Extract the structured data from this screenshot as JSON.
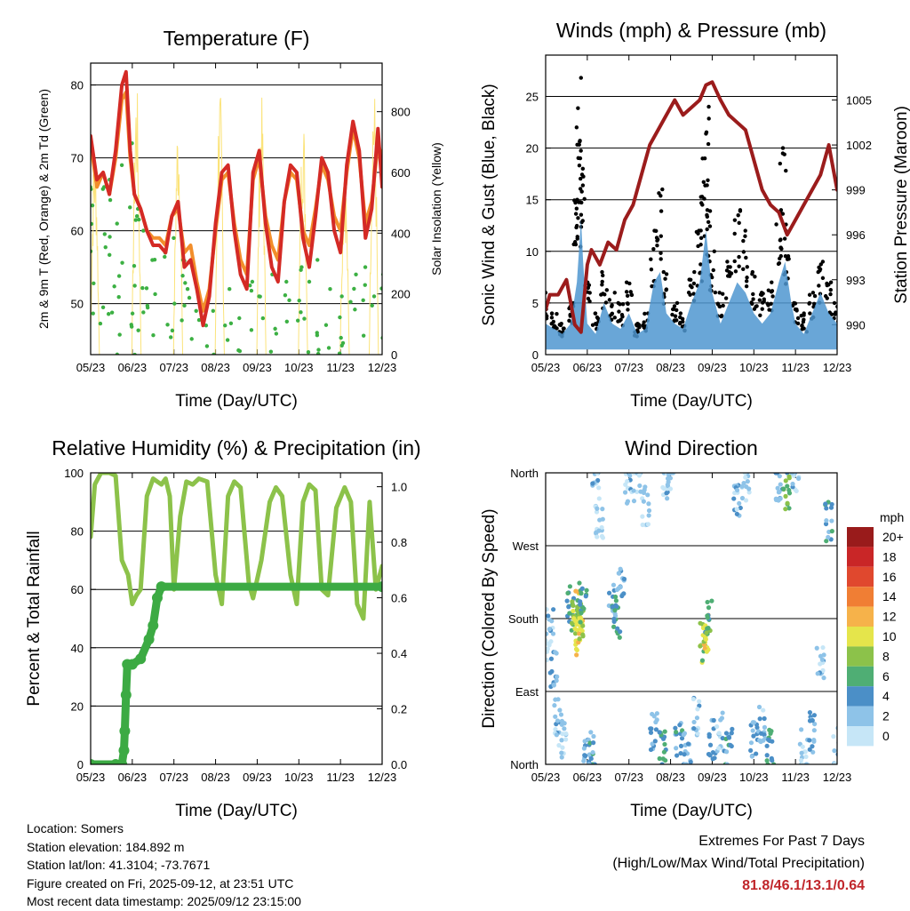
{
  "info": {
    "location": "Location: Somers",
    "elevation": "Station elevation: 184.892 m",
    "latlon": "Station lat/lon: 41.3104; -73.7671",
    "created": "Figure created on Fri, 2025-09-12, at 23:51 UTC",
    "recent": "Most recent data timestamp: 2025/09/12 23:15:00"
  },
  "extremes": {
    "title": "Extremes For Past 7 Days",
    "subtitle": "(High/Low/Max Wind/Total Precipitation)",
    "values": "81.8/46.1/13.1/0.64",
    "value_color": "#c0262b"
  },
  "chart_data": [
    {
      "id": "temperature",
      "type": "line",
      "title": "Temperature (F)",
      "xlabel": "Time (Day/UTC)",
      "ylabel": "2m & 9m T (Red, Orange) & 2m Td (Green)",
      "y2label": "Solar Insolation (Yellow)",
      "xlim": [
        0,
        7
      ],
      "xticks": [
        "05/23",
        "06/23",
        "07/23",
        "08/23",
        "09/23",
        "10/23",
        "11/23",
        "12/23"
      ],
      "ylim": [
        43,
        83
      ],
      "yticks": [
        50,
        60,
        70,
        80
      ],
      "y2lim": [
        0,
        960
      ],
      "y2ticks": [
        0,
        200,
        400,
        600,
        800
      ],
      "grid_y": true,
      "series": [
        {
          "name": "Solar Insolation",
          "axis": "y2",
          "color": "#fbe37a",
          "style": "spikes",
          "days": [
            0.1,
            1.1,
            2.1,
            3.1,
            4.1,
            5.1,
            6.1,
            6.8
          ],
          "peaks": [
            700,
            910,
            800,
            900,
            860,
            820,
            640,
            920
          ]
        },
        {
          "name": "2m Td",
          "axis": "y",
          "color": "#3cb043",
          "style": "points",
          "x": [
            0,
            0.3,
            0.5,
            0.7,
            1.0,
            1.1,
            1.3,
            1.5,
            1.8,
            2.0,
            2.2,
            2.4,
            2.6,
            2.8,
            3.0,
            3.3,
            3.6,
            3.9,
            4.1,
            4.4,
            4.7,
            5.0,
            5.2,
            5.5,
            5.7,
            6.0,
            6.3,
            6.6,
            6.8,
            7.0
          ],
          "values": [
            66,
            66,
            67,
            69,
            72,
            63,
            60,
            58,
            57,
            59,
            56,
            52,
            49,
            47,
            49,
            52,
            48,
            53,
            51,
            54,
            53,
            55,
            53,
            56,
            52,
            51,
            54,
            55,
            51,
            54
          ]
        },
        {
          "name": "9m T",
          "axis": "y",
          "color": "#f28e2b",
          "style": "line",
          "x": [
            0,
            0.15,
            0.3,
            0.45,
            0.6,
            0.75,
            0.85,
            0.95,
            1.05,
            1.2,
            1.35,
            1.5,
            1.65,
            1.8,
            1.95,
            2.1,
            2.25,
            2.4,
            2.55,
            2.7,
            2.85,
            3.0,
            3.15,
            3.3,
            3.45,
            3.6,
            3.75,
            3.9,
            4.05,
            4.2,
            4.35,
            4.5,
            4.65,
            4.8,
            4.95,
            5.1,
            5.25,
            5.4,
            5.55,
            5.7,
            5.85,
            6.0,
            6.15,
            6.3,
            6.45,
            6.6,
            6.75,
            6.9,
            7.0
          ],
          "values": [
            72,
            66,
            68,
            65,
            70,
            78,
            79,
            70,
            65,
            63,
            60,
            59,
            59,
            58,
            62,
            63,
            57,
            58,
            53,
            49,
            52,
            60,
            67,
            68,
            61,
            56,
            54,
            67,
            70,
            62,
            58,
            56,
            64,
            68,
            67,
            60,
            58,
            63,
            69,
            67,
            62,
            60,
            68,
            74,
            70,
            61,
            64,
            72,
            70
          ]
        },
        {
          "name": "2m T",
          "axis": "y",
          "color": "#d42a25",
          "style": "line",
          "x": [
            0,
            0.15,
            0.3,
            0.45,
            0.6,
            0.75,
            0.85,
            0.95,
            1.05,
            1.2,
            1.35,
            1.5,
            1.65,
            1.8,
            1.95,
            2.1,
            2.25,
            2.4,
            2.55,
            2.7,
            2.85,
            3.0,
            3.15,
            3.3,
            3.45,
            3.6,
            3.75,
            3.9,
            4.05,
            4.2,
            4.35,
            4.5,
            4.65,
            4.8,
            4.95,
            5.1,
            5.25,
            5.4,
            5.55,
            5.7,
            5.85,
            6.0,
            6.15,
            6.3,
            6.45,
            6.6,
            6.75,
            6.9,
            7.0
          ],
          "values": [
            73,
            67,
            68,
            65,
            71,
            80,
            81.8,
            71,
            65,
            63,
            60,
            58,
            58,
            57,
            62,
            64,
            55,
            56,
            52,
            47,
            51,
            61,
            68,
            69,
            60,
            54,
            52,
            68,
            71,
            61,
            55,
            53,
            64,
            69,
            68,
            59,
            55,
            62,
            70,
            68,
            60,
            57,
            69,
            75,
            71,
            59,
            63,
            74,
            66
          ]
        }
      ]
    },
    {
      "id": "winds",
      "type": "scatter",
      "title": "Winds (mph) & Pressure (mb)",
      "xlabel": "Time (Day/UTC)",
      "ylabel": "Sonic Wind & Gust (Blue, Black)",
      "y2label": "Station Pressure (Maroon)",
      "xlim": [
        0,
        7
      ],
      "xticks": [
        "05/23",
        "06/23",
        "07/23",
        "08/23",
        "09/23",
        "10/23",
        "11/23",
        "12/23"
      ],
      "ylim": [
        0,
        29
      ],
      "yticks": [
        0,
        5,
        10,
        15,
        20,
        25
      ],
      "y2lim": [
        988,
        1008
      ],
      "y2ticks": [
        990,
        993,
        996,
        999,
        1002,
        1005
      ],
      "grid_y": true,
      "series": [
        {
          "name": "Sonic Gust",
          "axis": "y",
          "color": "#000000",
          "style": "points",
          "x": [
            0,
            0.2,
            0.4,
            0.6,
            0.75,
            0.8,
            0.85,
            0.9,
            1.0,
            1.2,
            1.4,
            1.6,
            1.8,
            2.0,
            2.2,
            2.4,
            2.6,
            2.75,
            2.9,
            3.1,
            3.3,
            3.5,
            3.7,
            3.8,
            3.85,
            3.9,
            4.0,
            4.2,
            4.4,
            4.6,
            4.8,
            5.0,
            5.2,
            5.4,
            5.6,
            5.7,
            5.8,
            6.0,
            6.2,
            6.4,
            6.6,
            6.8,
            7.0
          ],
          "values": [
            6,
            4,
            3,
            5,
            15,
            22,
            26.8,
            18,
            7,
            4,
            8,
            6,
            5,
            7,
            3,
            4,
            12,
            16,
            8,
            5,
            4,
            8,
            12,
            19,
            24,
            14,
            10,
            6,
            9,
            14,
            12,
            8,
            6,
            7,
            14,
            20,
            12,
            5,
            4,
            6,
            9,
            7,
            5
          ]
        },
        {
          "name": "Sonic Wind",
          "axis": "y",
          "color": "#4f97d0",
          "style": "band",
          "x": [
            0,
            0.2,
            0.4,
            0.6,
            0.75,
            0.85,
            0.9,
            1.0,
            1.2,
            1.4,
            1.6,
            1.8,
            2.0,
            2.2,
            2.4,
            2.6,
            2.75,
            2.9,
            3.1,
            3.3,
            3.5,
            3.7,
            3.85,
            4.0,
            4.2,
            4.4,
            4.6,
            4.8,
            5.0,
            5.2,
            5.4,
            5.6,
            5.75,
            5.9,
            6.0,
            6.2,
            6.4,
            6.6,
            6.8,
            7.0
          ],
          "values": [
            3,
            2.5,
            2,
            3,
            7,
            13.1,
            9,
            3,
            2,
            5,
            3,
            2.5,
            4,
            2,
            2.5,
            7,
            8,
            4,
            3,
            2.5,
            5,
            7,
            12,
            6,
            3,
            5,
            7,
            6,
            4,
            3,
            4,
            7,
            9,
            5,
            3,
            2,
            4,
            6,
            4,
            3
          ]
        },
        {
          "name": "Station Pressure",
          "axis": "y2",
          "color": "#9b1c1c",
          "style": "line",
          "x": [
            0,
            0.1,
            0.3,
            0.5,
            0.7,
            0.85,
            1.0,
            1.1,
            1.3,
            1.5,
            1.7,
            1.9,
            2.1,
            2.3,
            2.5,
            2.7,
            2.9,
            3.1,
            3.3,
            3.5,
            3.7,
            3.85,
            4.0,
            4.2,
            4.4,
            4.6,
            4.8,
            5.0,
            5.2,
            5.4,
            5.6,
            5.8,
            6.0,
            6.2,
            6.4,
            6.6,
            6.8,
            7.0
          ],
          "values": [
            991,
            992,
            992,
            993,
            990,
            989.5,
            994,
            995,
            994,
            995.5,
            995,
            997,
            998,
            1000,
            1002,
            1003,
            1004,
            1005,
            1004,
            1004.5,
            1005,
            1006,
            1006.2,
            1005,
            1004,
            1003.5,
            1003,
            1001,
            999,
            998,
            997.5,
            996,
            997,
            998,
            999,
            1000,
            1002,
            999
          ]
        }
      ]
    },
    {
      "id": "humidity",
      "type": "line",
      "title": "Relative Humidity (%) & Precipitation (in)",
      "xlabel": "Time (Day/UTC)",
      "ylabel": "Percent & Total Rainfall",
      "xlim": [
        0,
        7
      ],
      "xticks": [
        "05/23",
        "06/23",
        "07/23",
        "08/23",
        "09/23",
        "10/23",
        "11/23",
        "12/23"
      ],
      "ylim": [
        0,
        100
      ],
      "yticks": [
        0,
        20,
        40,
        60,
        80,
        100
      ],
      "y2lim": [
        0,
        1.05
      ],
      "y2ticks": [
        0.0,
        0.2,
        0.4,
        0.6,
        0.8,
        1.0
      ],
      "grid_y": true,
      "series": [
        {
          "name": "Relative Humidity",
          "axis": "y",
          "color": "#8cc24a",
          "style": "line",
          "x": [
            0,
            0.1,
            0.25,
            0.45,
            0.6,
            0.75,
            0.9,
            1.0,
            1.1,
            1.2,
            1.35,
            1.5,
            1.7,
            1.8,
            1.9,
            2.0,
            2.15,
            2.3,
            2.45,
            2.6,
            2.8,
            3.0,
            3.15,
            3.3,
            3.45,
            3.6,
            3.8,
            3.9,
            4.1,
            4.3,
            4.45,
            4.6,
            4.8,
            4.95,
            5.1,
            5.25,
            5.4,
            5.55,
            5.7,
            5.9,
            6.1,
            6.25,
            6.4,
            6.55,
            6.7,
            6.85,
            7.0
          ],
          "values": [
            78,
            96,
            100,
            100,
            99,
            70,
            65,
            55,
            58,
            60,
            92,
            98,
            96,
            98,
            92,
            60,
            85,
            97,
            96,
            98,
            97,
            65,
            55,
            92,
            97,
            95,
            62,
            57,
            70,
            90,
            95,
            92,
            65,
            55,
            90,
            96,
            94,
            60,
            58,
            88,
            95,
            90,
            55,
            50,
            90,
            60,
            68
          ]
        },
        {
          "name": "Total Precipitation",
          "axis": "y2",
          "color": "#3caa43",
          "style": "thick",
          "x": [
            0,
            0.6,
            0.75,
            0.8,
            0.82,
            0.85,
            0.88,
            1.0,
            1.2,
            1.4,
            1.5,
            1.6,
            1.7,
            7.0
          ],
          "values": [
            0,
            0,
            0,
            0.05,
            0.12,
            0.25,
            0.36,
            0.36,
            0.38,
            0.45,
            0.5,
            0.6,
            0.64,
            0.64
          ]
        }
      ]
    },
    {
      "id": "direction",
      "type": "scatter",
      "title": "Wind Direction",
      "xlabel": "Time (Day/UTC)",
      "ylabel": "Direction (Colored By Speed)",
      "xlim": [
        0,
        7
      ],
      "xticks": [
        "05/23",
        "06/23",
        "07/23",
        "08/23",
        "09/23",
        "10/23",
        "11/23",
        "12/23"
      ],
      "ylim": [
        0,
        360
      ],
      "yticks": [
        "North",
        "East",
        "South",
        "West",
        "North"
      ],
      "ytick_values": [
        0,
        90,
        180,
        270,
        360
      ],
      "grid_y": true,
      "colorbar": {
        "title": "mph",
        "labels": [
          "0",
          "2",
          "4",
          "6",
          "8",
          "10",
          "12",
          "14",
          "16",
          "18",
          "20+"
        ],
        "colors": [
          "#c6e6f7",
          "#8ec3e8",
          "#4b8fc7",
          "#4fae74",
          "#8cc24a",
          "#e5e54b",
          "#f6b24a",
          "#f07e34",
          "#e0482e",
          "#c92627",
          "#991b1b"
        ]
      },
      "series": [
        {
          "name": "Wind Direction",
          "style": "points",
          "x": [
            0.0,
            0.1,
            0.2,
            0.3,
            0.4,
            0.6,
            0.7,
            0.75,
            0.8,
            0.85,
            0.9,
            1.0,
            1.1,
            1.2,
            1.3,
            1.6,
            1.7,
            1.8,
            2.0,
            2.2,
            2.4,
            2.6,
            2.8,
            2.9,
            3.0,
            3.2,
            3.4,
            3.6,
            3.8,
            3.85,
            3.9,
            4.0,
            4.2,
            4.4,
            4.6,
            4.8,
            5.0,
            5.2,
            5.4,
            5.6,
            5.8,
            6.0,
            6.2,
            6.4,
            6.6,
            6.8,
            7.0
          ],
          "directions": [
            150,
            170,
            120,
            60,
            30,
            200,
            180,
            190,
            160,
            180,
            200,
            20,
            10,
            340,
            300,
            200,
            180,
            230,
            340,
            350,
            320,
            40,
            20,
            350,
            360,
            30,
            20,
            60,
            150,
            160,
            180,
            30,
            40,
            20,
            330,
            350,
            30,
            50,
            20,
            350,
            340,
            360,
            20,
            40,
            120,
            300,
            20
          ],
          "speeds": [
            2,
            3,
            4,
            3,
            2,
            6,
            8,
            11,
            12,
            10,
            6,
            4,
            5,
            3,
            2,
            5,
            6,
            4,
            3,
            2,
            2,
            4,
            6,
            3,
            2,
            5,
            4,
            3,
            9,
            11,
            7,
            4,
            3,
            5,
            3,
            2,
            4,
            3,
            6,
            4,
            7,
            3,
            2,
            4,
            3,
            5,
            3
          ]
        }
      ]
    }
  ]
}
